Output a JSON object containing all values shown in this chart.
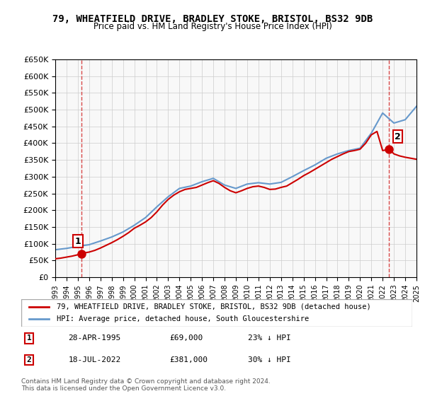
{
  "title": "79, WHEATFIELD DRIVE, BRADLEY STOKE, BRISTOL, BS32 9DB",
  "subtitle": "Price paid vs. HM Land Registry's House Price Index (HPI)",
  "legend_line1": "79, WHEATFIELD DRIVE, BRADLEY STOKE, BRISTOL, BS32 9DB (detached house)",
  "legend_line2": "HPI: Average price, detached house, South Gloucestershire",
  "annotation1_label": "1",
  "annotation1_date": "28-APR-1995",
  "annotation1_price": "£69,000",
  "annotation1_hpi": "23% ↓ HPI",
  "annotation2_label": "2",
  "annotation2_date": "18-JUL-2022",
  "annotation2_price": "£381,000",
  "annotation2_hpi": "30% ↓ HPI",
  "footer": "Contains HM Land Registry data © Crown copyright and database right 2024.\nThis data is licensed under the Open Government Licence v3.0.",
  "sale1_x": 1995.32,
  "sale1_y": 69000,
  "sale2_x": 2022.54,
  "sale2_y": 381000,
  "red_color": "#cc0000",
  "blue_color": "#6699cc",
  "dashed_red": "#cc0000",
  "ylim": [
    0,
    650000
  ],
  "xlim": [
    1993,
    2025
  ],
  "ytick_step": 50000,
  "hpi_x": [
    1993,
    1994,
    1995,
    1996,
    1997,
    1998,
    1999,
    2000,
    2001,
    2002,
    2003,
    2004,
    2005,
    2006,
    2007,
    2008,
    2009,
    2010,
    2011,
    2012,
    2013,
    2014,
    2015,
    2016,
    2017,
    2018,
    2019,
    2020,
    2021,
    2022,
    2023,
    2024,
    2025
  ],
  "hpi_y": [
    82000,
    86000,
    92000,
    97000,
    108000,
    120000,
    135000,
    155000,
    178000,
    210000,
    240000,
    265000,
    272000,
    285000,
    295000,
    275000,
    265000,
    278000,
    282000,
    278000,
    283000,
    300000,
    318000,
    335000,
    355000,
    368000,
    378000,
    385000,
    430000,
    490000,
    460000,
    470000,
    510000
  ],
  "price_x": [
    1993.0,
    1993.5,
    1994.0,
    1994.5,
    1995.0,
    1995.32,
    1995.5,
    1996.0,
    1996.5,
    1997.0,
    1997.5,
    1998.0,
    1998.5,
    1999.0,
    1999.5,
    2000.0,
    2000.5,
    2001.0,
    2001.5,
    2002.0,
    2002.5,
    2003.0,
    2003.5,
    2004.0,
    2004.5,
    2005.0,
    2005.5,
    2006.0,
    2006.5,
    2007.0,
    2007.5,
    2008.0,
    2008.5,
    2009.0,
    2009.5,
    2010.0,
    2010.5,
    2011.0,
    2011.5,
    2012.0,
    2012.5,
    2013.0,
    2013.5,
    2014.0,
    2014.5,
    2015.0,
    2015.5,
    2016.0,
    2016.5,
    2017.0,
    2017.5,
    2018.0,
    2018.5,
    2019.0,
    2019.5,
    2020.0,
    2020.5,
    2021.0,
    2021.5,
    2022.0,
    2022.54,
    2022.8,
    2023.0,
    2023.5,
    2024.0,
    2024.5,
    2025.0
  ],
  "price_y": [
    55000,
    57000,
    60000,
    63000,
    67000,
    69000,
    72000,
    75000,
    80000,
    87000,
    95000,
    103000,
    112000,
    122000,
    133000,
    146000,
    155000,
    165000,
    178000,
    195000,
    215000,
    232000,
    245000,
    255000,
    262000,
    265000,
    268000,
    275000,
    282000,
    288000,
    280000,
    268000,
    258000,
    252000,
    258000,
    265000,
    270000,
    272000,
    268000,
    262000,
    263000,
    268000,
    272000,
    282000,
    292000,
    303000,
    312000,
    322000,
    332000,
    342000,
    352000,
    360000,
    368000,
    375000,
    378000,
    382000,
    400000,
    425000,
    435000,
    378000,
    381000,
    375000,
    368000,
    362000,
    358000,
    355000,
    352000
  ]
}
